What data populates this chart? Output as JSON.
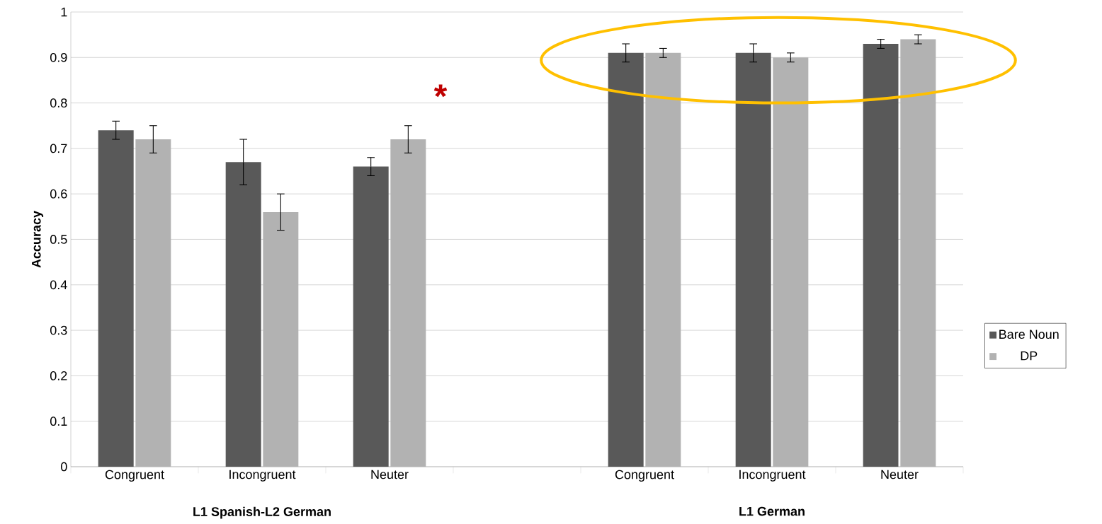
{
  "chart_data": {
    "type": "bar",
    "ylabel": "Accuracy",
    "categories": [
      "Congruent",
      "Incongruent",
      "Neuter",
      null,
      "Congruent",
      "Incongruent",
      "Neuter"
    ],
    "series": [
      {
        "name": "Bare Noun",
        "color": "#595959",
        "values": [
          0.74,
          0.67,
          0.66,
          null,
          0.91,
          0.91,
          0.93
        ],
        "errors": [
          0.02,
          0.05,
          0.02,
          null,
          0.02,
          0.02,
          0.01
        ]
      },
      {
        "name": "DP",
        "color": "#b2b2b2",
        "values": [
          0.72,
          0.56,
          0.72,
          null,
          0.91,
          0.9,
          0.94
        ],
        "errors": [
          0.03,
          0.04,
          0.03,
          null,
          0.01,
          0.01,
          0.01
        ]
      }
    ],
    "annotations": [
      "L1 Spanish-L2 German",
      "L1 German",
      "*"
    ],
    "ylim": [
      0,
      1
    ],
    "yticks": [
      0,
      0.1,
      0.2,
      0.3,
      0.4,
      0.5,
      0.6,
      0.7,
      0.8,
      0.9,
      1
    ],
    "grid": "y",
    "legend": "right"
  }
}
